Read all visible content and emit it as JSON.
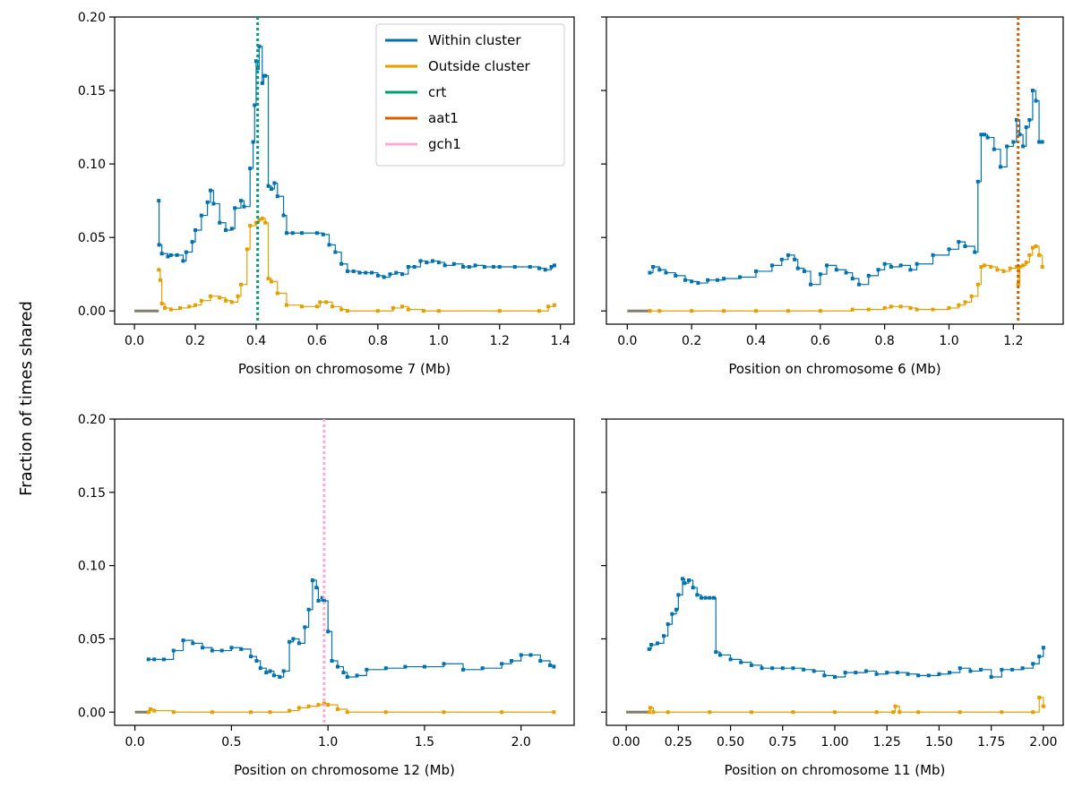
{
  "figure": {
    "ylabel": "Fraction of times shared"
  },
  "colors": {
    "within": "#0072b2",
    "outside": "#e69f00",
    "crt": "#009e73",
    "aat1": "#d55e00",
    "gch1": "#ffa8d8",
    "flat": "#7f7f6a"
  },
  "legend": {
    "entries": [
      {
        "label": "Within cluster",
        "color": "#0072b2"
      },
      {
        "label": "Outside cluster",
        "color": "#e69f00"
      },
      {
        "label": "crt",
        "color": "#009e73"
      },
      {
        "label": "aat1",
        "color": "#d55e00"
      },
      {
        "label": "gch1",
        "color": "#ffa8d8"
      }
    ]
  },
  "chart_data": [
    {
      "type": "line",
      "xlabel": "Position on chromosome 7 (Mb)",
      "xlim": [
        -0.065,
        1.445
      ],
      "ylim": [
        -0.009,
        0.2
      ],
      "xticks": [
        0.0,
        0.2,
        0.4,
        0.6,
        0.8,
        1.0,
        1.2,
        1.4
      ],
      "xtick_labels": [
        "0.0",
        "0.2",
        "0.4",
        "0.6",
        "0.8",
        "1.0",
        "1.2",
        "1.4"
      ],
      "yticks": [
        0.0,
        0.05,
        0.1,
        0.15,
        0.2
      ],
      "ytick_labels": [
        "0.00",
        "0.05",
        "0.10",
        "0.15",
        "0.20"
      ],
      "marker": {
        "gene": "crt",
        "x": 0.405,
        "color": "#009e73"
      },
      "flat_segment": [
        0.0,
        0.08
      ],
      "series": [
        {
          "name": "Within cluster",
          "color": "#0072b2",
          "x": [
            0.08,
            0.081,
            0.09,
            0.11,
            0.12,
            0.14,
            0.16,
            0.17,
            0.19,
            0.2,
            0.22,
            0.24,
            0.25,
            0.26,
            0.28,
            0.3,
            0.32,
            0.33,
            0.35,
            0.36,
            0.38,
            0.39,
            0.395,
            0.4,
            0.405,
            0.41,
            0.42,
            0.425,
            0.43,
            0.44,
            0.45,
            0.46,
            0.47,
            0.49,
            0.5,
            0.52,
            0.55,
            0.6,
            0.62,
            0.64,
            0.66,
            0.68,
            0.7,
            0.72,
            0.74,
            0.76,
            0.78,
            0.8,
            0.82,
            0.84,
            0.86,
            0.88,
            0.9,
            0.92,
            0.94,
            0.96,
            0.98,
            1.0,
            1.02,
            1.05,
            1.08,
            1.1,
            1.12,
            1.15,
            1.18,
            1.2,
            1.25,
            1.3,
            1.33,
            1.35,
            1.37,
            1.38
          ],
          "y": [
            0.075,
            0.045,
            0.039,
            0.037,
            0.038,
            0.038,
            0.034,
            0.04,
            0.047,
            0.055,
            0.065,
            0.074,
            0.082,
            0.073,
            0.06,
            0.055,
            0.056,
            0.07,
            0.075,
            0.071,
            0.097,
            0.115,
            0.14,
            0.17,
            0.165,
            0.18,
            0.155,
            0.16,
            0.16,
            0.085,
            0.083,
            0.087,
            0.078,
            0.065,
            0.053,
            0.053,
            0.053,
            0.053,
            0.052,
            0.045,
            0.04,
            0.032,
            0.027,
            0.027,
            0.026,
            0.026,
            0.026,
            0.024,
            0.023,
            0.025,
            0.026,
            0.025,
            0.03,
            0.03,
            0.034,
            0.033,
            0.034,
            0.033,
            0.031,
            0.032,
            0.03,
            0.03,
            0.031,
            0.03,
            0.03,
            0.03,
            0.03,
            0.03,
            0.029,
            0.028,
            0.03,
            0.031
          ]
        },
        {
          "name": "Outside cluster",
          "color": "#e69f00",
          "x": [
            0.08,
            0.085,
            0.09,
            0.1,
            0.12,
            0.15,
            0.18,
            0.2,
            0.22,
            0.25,
            0.28,
            0.3,
            0.32,
            0.34,
            0.35,
            0.37,
            0.38,
            0.4,
            0.41,
            0.42,
            0.43,
            0.44,
            0.45,
            0.47,
            0.5,
            0.55,
            0.6,
            0.61,
            0.63,
            0.65,
            0.68,
            0.7,
            0.8,
            0.85,
            0.88,
            0.9,
            0.95,
            1.0,
            1.2,
            1.33,
            1.36,
            1.38
          ],
          "y": [
            0.028,
            0.021,
            0.005,
            0.002,
            0.001,
            0.002,
            0.003,
            0.004,
            0.007,
            0.01,
            0.009,
            0.007,
            0.006,
            0.01,
            0.018,
            0.042,
            0.058,
            0.06,
            0.062,
            0.063,
            0.06,
            0.022,
            0.02,
            0.012,
            0.004,
            0.003,
            0.003,
            0.006,
            0.006,
            0.003,
            0.001,
            0.0,
            0.0,
            0.002,
            0.003,
            0.001,
            0.0,
            0.0,
            0.0,
            0.0,
            0.003,
            0.004
          ]
        }
      ]
    },
    {
      "type": "line",
      "xlabel": "Position on chromosome 6 (Mb)",
      "xlim": [
        -0.065,
        1.355
      ],
      "ylim": [
        -0.009,
        0.2
      ],
      "xticks": [
        0.0,
        0.2,
        0.4,
        0.6,
        0.8,
        1.0,
        1.2
      ],
      "xtick_labels": [
        "0.0",
        "0.2",
        "0.4",
        "0.6",
        "0.8",
        "1.0",
        "1.2"
      ],
      "yticks": [
        0.0,
        0.05,
        0.1,
        0.15,
        0.2
      ],
      "ytick_labels": [
        "",
        "",
        "",
        "",
        ""
      ],
      "marker": {
        "gene": "aat1",
        "x": 1.215,
        "color": "#d55e00"
      },
      "flat_segment": [
        0.0,
        0.07
      ],
      "series": [
        {
          "name": "Within cluster",
          "color": "#0072b2",
          "x": [
            0.07,
            0.08,
            0.1,
            0.12,
            0.15,
            0.18,
            0.2,
            0.22,
            0.25,
            0.28,
            0.3,
            0.35,
            0.4,
            0.45,
            0.48,
            0.5,
            0.52,
            0.53,
            0.55,
            0.57,
            0.6,
            0.62,
            0.65,
            0.68,
            0.7,
            0.72,
            0.75,
            0.78,
            0.8,
            0.82,
            0.85,
            0.88,
            0.9,
            0.95,
            1.0,
            1.03,
            1.05,
            1.08,
            1.09,
            1.1,
            1.11,
            1.12,
            1.14,
            1.16,
            1.18,
            1.2,
            1.21,
            1.22,
            1.23,
            1.24,
            1.25,
            1.26,
            1.27,
            1.28,
            1.29
          ],
          "y": [
            0.026,
            0.03,
            0.028,
            0.026,
            0.024,
            0.021,
            0.02,
            0.019,
            0.021,
            0.021,
            0.022,
            0.023,
            0.027,
            0.031,
            0.035,
            0.038,
            0.035,
            0.029,
            0.027,
            0.018,
            0.025,
            0.031,
            0.028,
            0.026,
            0.022,
            0.018,
            0.024,
            0.028,
            0.032,
            0.03,
            0.031,
            0.028,
            0.032,
            0.038,
            0.042,
            0.047,
            0.044,
            0.04,
            0.088,
            0.12,
            0.12,
            0.118,
            0.11,
            0.098,
            0.112,
            0.115,
            0.13,
            0.12,
            0.112,
            0.125,
            0.13,
            0.15,
            0.143,
            0.115,
            0.115
          ]
        },
        {
          "name": "Outside cluster",
          "color": "#e69f00",
          "x": [
            0.07,
            0.1,
            0.2,
            0.3,
            0.4,
            0.5,
            0.6,
            0.7,
            0.75,
            0.8,
            0.82,
            0.85,
            0.88,
            0.9,
            0.95,
            1.0,
            1.03,
            1.05,
            1.07,
            1.09,
            1.1,
            1.11,
            1.13,
            1.15,
            1.17,
            1.19,
            1.21,
            1.215,
            1.22,
            1.23,
            1.24,
            1.25,
            1.26,
            1.27,
            1.28,
            1.29
          ],
          "y": [
            0.0,
            0.0,
            0.0,
            0.0,
            0.0,
            0.0,
            0.0,
            0.001,
            0.001,
            0.002,
            0.003,
            0.003,
            0.002,
            0.001,
            0.001,
            0.002,
            0.004,
            0.006,
            0.01,
            0.018,
            0.03,
            0.031,
            0.03,
            0.028,
            0.027,
            0.029,
            0.03,
            0.018,
            0.03,
            0.031,
            0.033,
            0.038,
            0.043,
            0.044,
            0.038,
            0.03
          ]
        }
      ]
    },
    {
      "type": "line",
      "xlabel": "Position on chromosome 12 (Mb)",
      "xlim": [
        -0.105,
        2.275
      ],
      "ylim": [
        -0.009,
        0.2
      ],
      "xticks": [
        0.0,
        0.5,
        1.0,
        1.5,
        2.0
      ],
      "xtick_labels": [
        "0.0",
        "0.5",
        "1.0",
        "1.5",
        "2.0"
      ],
      "yticks": [
        0.0,
        0.05,
        0.1,
        0.15,
        0.2
      ],
      "ytick_labels": [
        "0.00",
        "0.05",
        "0.10",
        "0.15",
        "0.20"
      ],
      "marker": {
        "gene": "gch1",
        "x": 0.98,
        "color": "#ffa8d8"
      },
      "flat_segment": [
        0.0,
        0.07
      ],
      "series": [
        {
          "name": "Within cluster",
          "color": "#0072b2",
          "x": [
            0.07,
            0.1,
            0.15,
            0.2,
            0.25,
            0.3,
            0.35,
            0.4,
            0.45,
            0.5,
            0.55,
            0.6,
            0.63,
            0.65,
            0.68,
            0.7,
            0.72,
            0.75,
            0.77,
            0.8,
            0.82,
            0.85,
            0.88,
            0.9,
            0.92,
            0.94,
            0.95,
            0.97,
            0.98,
            1.0,
            1.02,
            1.05,
            1.08,
            1.1,
            1.15,
            1.2,
            1.3,
            1.4,
            1.5,
            1.6,
            1.7,
            1.8,
            1.9,
            1.95,
            2.0,
            2.05,
            2.1,
            2.15,
            2.17
          ],
          "y": [
            0.036,
            0.036,
            0.036,
            0.042,
            0.049,
            0.047,
            0.044,
            0.042,
            0.042,
            0.044,
            0.043,
            0.038,
            0.035,
            0.03,
            0.027,
            0.028,
            0.025,
            0.024,
            0.028,
            0.048,
            0.05,
            0.047,
            0.058,
            0.07,
            0.09,
            0.085,
            0.076,
            0.078,
            0.076,
            0.055,
            0.035,
            0.031,
            0.027,
            0.024,
            0.025,
            0.029,
            0.03,
            0.031,
            0.031,
            0.033,
            0.029,
            0.03,
            0.033,
            0.035,
            0.039,
            0.039,
            0.035,
            0.032,
            0.031
          ]
        },
        {
          "name": "Outside cluster",
          "color": "#e69f00",
          "x": [
            0.07,
            0.08,
            0.1,
            0.2,
            0.4,
            0.6,
            0.7,
            0.8,
            0.85,
            0.9,
            0.95,
            0.98,
            1.0,
            1.05,
            1.1,
            1.3,
            1.6,
            1.9,
            2.17
          ],
          "y": [
            0.0,
            0.002,
            0.001,
            0.0,
            0.0,
            0.0,
            0.0,
            0.001,
            0.003,
            0.004,
            0.005,
            0.006,
            0.005,
            0.002,
            0.0,
            0.0,
            0.0,
            0.0,
            0.0
          ]
        }
      ]
    },
    {
      "type": "line",
      "xlabel": "Position on chromosome 11 (Mb)",
      "xlim": [
        -0.095,
        2.095
      ],
      "ylim": [
        -0.009,
        0.2
      ],
      "xticks": [
        0.0,
        0.25,
        0.5,
        0.75,
        1.0,
        1.25,
        1.5,
        1.75,
        2.0
      ],
      "xtick_labels": [
        "0.00",
        "0.25",
        "0.50",
        "0.75",
        "1.00",
        "1.25",
        "1.50",
        "1.75",
        "2.00"
      ],
      "yticks": [
        0.0,
        0.05,
        0.1,
        0.15,
        0.2
      ],
      "ytick_labels": [
        "",
        "",
        "",
        "",
        ""
      ],
      "marker": null,
      "flat_segment": [
        0.0,
        0.11
      ],
      "series": [
        {
          "name": "Within cluster",
          "color": "#0072b2",
          "x": [
            0.11,
            0.12,
            0.15,
            0.18,
            0.2,
            0.22,
            0.24,
            0.25,
            0.27,
            0.28,
            0.3,
            0.32,
            0.34,
            0.36,
            0.38,
            0.4,
            0.42,
            0.43,
            0.45,
            0.5,
            0.55,
            0.6,
            0.65,
            0.7,
            0.75,
            0.8,
            0.85,
            0.9,
            0.95,
            1.0,
            1.05,
            1.1,
            1.15,
            1.2,
            1.25,
            1.3,
            1.35,
            1.4,
            1.45,
            1.5,
            1.55,
            1.6,
            1.65,
            1.7,
            1.75,
            1.8,
            1.85,
            1.9,
            1.95,
            1.98,
            2.0
          ],
          "y": [
            0.043,
            0.046,
            0.047,
            0.052,
            0.06,
            0.067,
            0.07,
            0.08,
            0.091,
            0.088,
            0.09,
            0.085,
            0.08,
            0.078,
            0.078,
            0.078,
            0.078,
            0.041,
            0.039,
            0.036,
            0.034,
            0.032,
            0.03,
            0.03,
            0.03,
            0.03,
            0.029,
            0.028,
            0.025,
            0.024,
            0.027,
            0.027,
            0.028,
            0.026,
            0.027,
            0.027,
            0.026,
            0.025,
            0.025,
            0.026,
            0.027,
            0.03,
            0.028,
            0.029,
            0.024,
            0.029,
            0.029,
            0.03,
            0.033,
            0.038,
            0.044
          ]
        },
        {
          "name": "Outside cluster",
          "color": "#e69f00",
          "x": [
            0.11,
            0.115,
            0.13,
            0.2,
            0.4,
            0.6,
            0.8,
            1.0,
            1.2,
            1.28,
            1.29,
            1.31,
            1.4,
            1.6,
            1.8,
            1.95,
            1.98,
            2.0
          ],
          "y": [
            0.0,
            0.003,
            0.0,
            0.0,
            0.0,
            0.0,
            0.0,
            0.0,
            0.0,
            0.0,
            0.004,
            0.0,
            0.0,
            0.0,
            0.0,
            0.0,
            0.01,
            0.004
          ]
        }
      ]
    }
  ]
}
